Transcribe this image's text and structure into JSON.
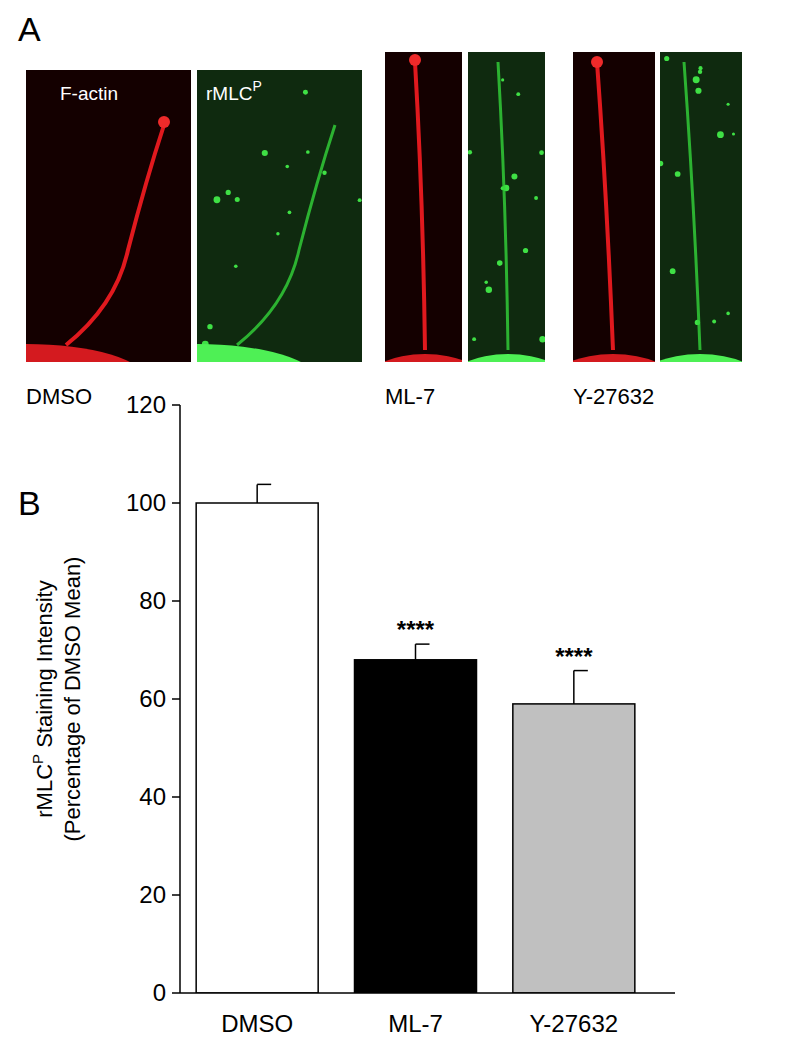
{
  "panel_labels": [
    "A",
    "B"
  ],
  "panel_a": {
    "channel_1": "F-actin",
    "channel_2": {
      "text": "rMLC",
      "superscript": "P"
    },
    "conditions": [
      "DMSO",
      "ML-7",
      "Y-27632"
    ]
  },
  "chart_data": {
    "type": "bar",
    "categories": [
      "DMSO",
      "ML-7",
      "Y-27632"
    ],
    "values": [
      100,
      68,
      59
    ],
    "errors": [
      3.8,
      3.2,
      6.8
    ],
    "colors": [
      "#ffffff",
      "#000000",
      "#c0c0c0"
    ],
    "significance": [
      null,
      "****",
      "****"
    ],
    "ylabel": {
      "text": "rMLC",
      "superscript": "P",
      "after": " Staining Intensity",
      "line2": "(Percentage of DMSO Mean)"
    },
    "ylim": [
      0,
      120
    ],
    "yticks": [
      0,
      20,
      40,
      60,
      80,
      100,
      120
    ]
  }
}
